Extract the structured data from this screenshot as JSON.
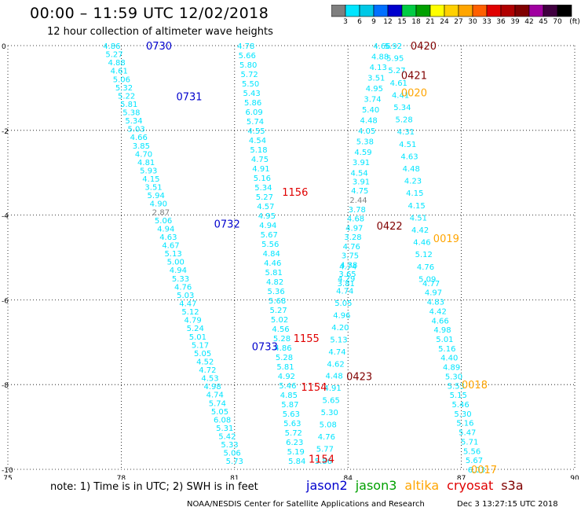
{
  "header": {
    "title": "00:00 – 11:59 UTC 12/02/2018",
    "subtitle": "12 hour collection of altimeter wave heights"
  },
  "colorbar": {
    "unit": "(ft)",
    "ticks": [
      "3",
      "6",
      "9",
      "12",
      "15",
      "18",
      "21",
      "24",
      "27",
      "30",
      "33",
      "36",
      "39",
      "42",
      "45",
      "70"
    ],
    "colors": [
      "#7f7f7f",
      "#00e5ff",
      "#00c8e6",
      "#0070ff",
      "#0000cd",
      "#00cc44",
      "#00a000",
      "#ffff00",
      "#ffd000",
      "#ffa500",
      "#ff6000",
      "#e00000",
      "#b00000",
      "#800000",
      "#a000a0",
      "#400040",
      "#000000"
    ]
  },
  "chart_data": {
    "type": "scatter",
    "xlim": [
      75,
      90
    ],
    "ylim": [
      -10,
      0
    ],
    "xticks": [
      "75",
      "78",
      "81",
      "84",
      "87",
      "90"
    ],
    "yticks": [
      "0",
      "-2",
      "-4",
      "-6",
      "-8",
      "-10"
    ],
    "grid": true,
    "colors": {
      "jason2": "#0000cd",
      "jason3": "#00a000",
      "altika": "#ffa500",
      "cryosat": "#e00000",
      "s3a": "#800000",
      "swh": "#00e5ff",
      "swh_low": "#7f7f7f"
    },
    "pass_labels": [
      {
        "text": "0730",
        "x": 79.0,
        "y": 0.0,
        "sat": "jason2"
      },
      {
        "text": "0731",
        "x": 79.8,
        "y": -1.2,
        "sat": "jason2"
      },
      {
        "text": "0732",
        "x": 80.8,
        "y": -4.2,
        "sat": "jason2"
      },
      {
        "text": "0733",
        "x": 81.8,
        "y": -7.1,
        "sat": "jason2"
      },
      {
        "text": "1156",
        "x": 82.6,
        "y": -3.45,
        "sat": "cryosat"
      },
      {
        "text": "1155",
        "x": 82.9,
        "y": -6.9,
        "sat": "cryosat"
      },
      {
        "text": "1154",
        "x": 83.1,
        "y": -8.05,
        "sat": "cryosat"
      },
      {
        "text": "1154",
        "x": 83.3,
        "y": -9.75,
        "sat": "cryosat"
      },
      {
        "text": "0420",
        "x": 86.0,
        "y": 0.0,
        "sat": "s3a"
      },
      {
        "text": "0421",
        "x": 85.75,
        "y": -0.7,
        "sat": "s3a"
      },
      {
        "text": "0422",
        "x": 85.1,
        "y": -4.25,
        "sat": "s3a"
      },
      {
        "text": "0423",
        "x": 84.3,
        "y": -7.8,
        "sat": "s3a"
      },
      {
        "text": "0020",
        "x": 85.75,
        "y": -1.1,
        "sat": "altika"
      },
      {
        "text": "0019",
        "x": 86.6,
        "y": -4.55,
        "sat": "altika"
      },
      {
        "text": "0018",
        "x": 87.35,
        "y": -8.0,
        "sat": "altika"
      },
      {
        "text": "0017",
        "x": 87.6,
        "y": -10.0,
        "sat": "altika"
      }
    ],
    "tracks": [
      {
        "name": "0730-0733",
        "x0": 77.75,
        "y0": 0.0,
        "x1": 81.0,
        "y1": -9.8,
        "values": [
          "4.86",
          "5.27",
          "4.88",
          "4.61",
          "5.06",
          "5.32",
          "5.22",
          "5.81",
          "5.38",
          "5.34",
          "5.03",
          "4.66",
          "3.85",
          "4.70",
          "4.81",
          "5.93",
          "4.15",
          "3.51",
          "5.94",
          "4.90",
          "2.87",
          "5.06",
          "4.94",
          "4.63",
          "4.67",
          "5.13",
          "5.00",
          "4.94",
          "5.33",
          "4.76",
          "5.03",
          "4.47",
          "5.12",
          "4.79",
          "5.24",
          "5.01",
          "5.17",
          "5.05",
          "4.52",
          "4.72",
          "4.53",
          "4.98",
          "4.74",
          "5.74",
          "5.05",
          "6.08",
          "5.31",
          "5.42",
          "5.33",
          "5.06",
          "5.73"
        ]
      },
      {
        "name": "1156-1154",
        "x0": 81.3,
        "y0": 0.0,
        "x1": 82.65,
        "y1": -9.8,
        "values": [
          "4.78",
          "5.66",
          "5.80",
          "5.72",
          "5.50",
          "5.43",
          "5.86",
          "6.09",
          "5.74",
          "4.55",
          "4.54",
          "5.18",
          "4.75",
          "4.91",
          "5.16",
          "5.34",
          "5.27",
          "4.57",
          "4.95",
          "4.94",
          "5.67",
          "5.56",
          "4.84",
          "4.46",
          "5.81",
          "4.82",
          "5.36",
          "5.68",
          "5.27",
          "5.02",
          "4.56",
          "5.28",
          "4.86",
          "5.28",
          "5.81",
          "4.92",
          "5.46",
          "4.85",
          "5.87",
          "5.63",
          "5.63",
          "5.72",
          "6.23",
          "5.19",
          "5.84"
        ]
      },
      {
        "name": "1154-1155",
        "x0": 83.35,
        "y0": -9.8,
        "x1": 84.0,
        "y1": -5.2,
        "values": [
          "5.86",
          "5.77",
          "4.76",
          "5.08",
          "5.30",
          "5.65",
          "4.91",
          "4.48",
          "4.62",
          "4.74",
          "5.13",
          "4.20",
          "4.96",
          "5.05",
          "4.74",
          "4.29",
          "4.74"
        ]
      },
      {
        "name": "0423-0422",
        "x0": 83.95,
        "y0": -5.6,
        "x1": 84.35,
        "y1": -3.2,
        "values": [
          "3.81",
          "3.65",
          "4.38",
          "3.75",
          "4.76",
          "3.28",
          "4.97",
          "4.68",
          "3.78",
          "2.44",
          "4.75",
          "3.91"
        ]
      },
      {
        "name": "0422-0420",
        "x0": 84.3,
        "y0": -3.0,
        "x1": 84.9,
        "y1": 0.0,
        "values": [
          "4.54",
          "3.91",
          "4.59",
          "5.38",
          "4.05",
          "4.48",
          "5.40",
          "3.74",
          "4.95",
          "3.51",
          "4.13",
          "4.88",
          "4.66"
        ]
      },
      {
        "name": "0420-0019",
        "x0": 85.2,
        "y0": 0.0,
        "x1": 86.1,
        "y1": -5.5,
        "values": [
          "5.92",
          "5.95",
          "5.27",
          "4.61",
          "4.41",
          "5.34",
          "5.28",
          "4.31",
          "4.51",
          "4.63",
          "4.48",
          "4.23",
          "4.15",
          "4.15",
          "4.51",
          "4.42",
          "4.46",
          "5.12",
          "4.76",
          "5.09"
        ]
      },
      {
        "name": "0019-0017",
        "x0": 86.2,
        "y0": -5.6,
        "x1": 87.4,
        "y1": -10.0,
        "values": [
          "4.77",
          "4.97",
          "4.83",
          "4.42",
          "4.66",
          "4.98",
          "5.01",
          "5.16",
          "4.40",
          "4.89",
          "5.30",
          "5.53",
          "5.15",
          "5.46",
          "5.30",
          "5.16",
          "5.47",
          "5.71",
          "5.56",
          "5.67",
          "6.03"
        ]
      }
    ]
  },
  "note": "note:  1) Time is in UTC;  2) SWH is in feet",
  "legend": {
    "items": [
      {
        "label": "jason2",
        "color": "#0000cd"
      },
      {
        "label": "jason3",
        "color": "#00a000"
      },
      {
        "label": "altika",
        "color": "#ffa500"
      },
      {
        "label": "cryosat",
        "color": "#e00000"
      },
      {
        "label": "s3a",
        "color": "#800000"
      }
    ]
  },
  "footer": {
    "credit": "NOAA/NESDIS Center for Satellite Applications and Research",
    "timestamp": "Dec  3 13:27:15 UTC 2018"
  }
}
